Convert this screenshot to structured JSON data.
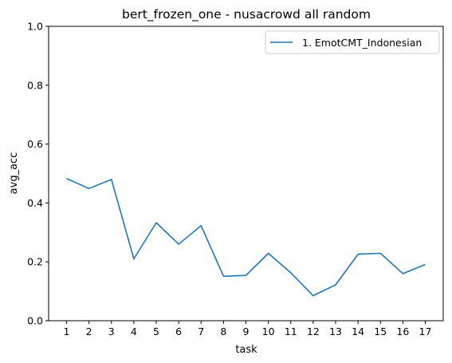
{
  "chart_data": {
    "type": "line",
    "title": "bert_frozen_one - nusacrowd all random",
    "xlabel": "task",
    "ylabel": "avg_acc",
    "x": [
      1,
      2,
      3,
      4,
      5,
      6,
      7,
      8,
      9,
      10,
      11,
      12,
      13,
      14,
      15,
      16,
      17
    ],
    "x_tick_labels": [
      "1",
      "2",
      "3",
      "4",
      "5",
      "6",
      "7",
      "8",
      "9",
      "10",
      "11",
      "12",
      "13",
      "14",
      "15",
      "16",
      "17"
    ],
    "y_ticks": [
      0.0,
      0.2,
      0.4,
      0.6,
      0.8,
      1.0
    ],
    "y_tick_labels": [
      "0.0",
      "0.2",
      "0.4",
      "0.6",
      "0.8",
      "1.0"
    ],
    "ylim": [
      0,
      1
    ],
    "xlim": [
      0.2,
      17.8
    ],
    "grid": false,
    "legend_position": "top-right",
    "series": [
      {
        "name": "1. EmotCMT_Indonesian",
        "color": "#1f77b4",
        "values": [
          0.483,
          0.449,
          0.48,
          0.21,
          0.333,
          0.26,
          0.323,
          0.151,
          0.154,
          0.229,
          0.163,
          0.085,
          0.122,
          0.226,
          0.229,
          0.16,
          0.191
        ]
      }
    ]
  }
}
